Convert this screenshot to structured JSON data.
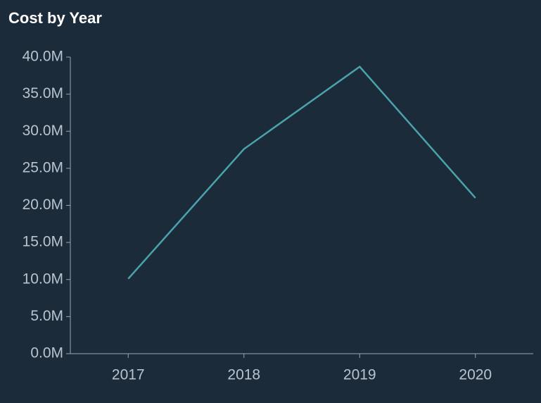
{
  "chart_data": {
    "type": "line",
    "title": "Cost by Year",
    "categories": [
      "2017",
      "2018",
      "2019",
      "2020"
    ],
    "series": [
      {
        "color": "#4aa3ab",
        "values": [
          10100000,
          27600000,
          38700000,
          21000000
        ]
      }
    ],
    "ylim": [
      0,
      40000000
    ],
    "yticks": [
      {
        "value": 0,
        "label": "0.0M"
      },
      {
        "value": 5000000,
        "label": "5.0M"
      },
      {
        "value": 10000000,
        "label": "10.0M"
      },
      {
        "value": 15000000,
        "label": "15.0M"
      },
      {
        "value": 20000000,
        "label": "20.0M"
      },
      {
        "value": 25000000,
        "label": "25.0M"
      },
      {
        "value": 30000000,
        "label": "30.0M"
      },
      {
        "value": 35000000,
        "label": "35.0M"
      },
      {
        "value": 40000000,
        "label": "40.0M"
      }
    ],
    "grid": false
  }
}
